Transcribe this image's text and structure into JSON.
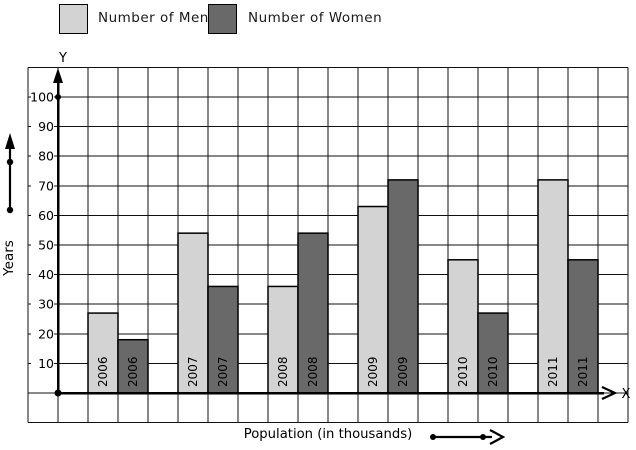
{
  "legend": {
    "items": [
      {
        "label": "Number of Men",
        "color": "#d3d3d3"
      },
      {
        "label": "Number of Women",
        "color": "#696969"
      }
    ]
  },
  "axes": {
    "y_letter": "Y",
    "x_letter": "X",
    "y_title": "Years",
    "x_title": "Population (in thousands)",
    "y_ticks": [
      10,
      20,
      30,
      40,
      50,
      60,
      70,
      80,
      90,
      100
    ]
  },
  "chart_data": {
    "type": "bar",
    "title": "",
    "categories": [
      "2006",
      "2007",
      "2008",
      "2009",
      "2010",
      "2011"
    ],
    "series": [
      {
        "name": "Number of Men",
        "color": "#d3d3d3",
        "values": [
          27,
          54,
          36,
          63,
          45,
          72
        ]
      },
      {
        "name": "Number of Women",
        "color": "#696969",
        "values": [
          18,
          36,
          54,
          72,
          27,
          45
        ]
      }
    ],
    "xlabel": "Population (in thousands)",
    "ylabel": "Years",
    "ylim": [
      0,
      100
    ],
    "ytick_step": 10,
    "grid": true,
    "grid_color": "#111111",
    "bar_border_color": "#000000",
    "legend_position": "top"
  }
}
